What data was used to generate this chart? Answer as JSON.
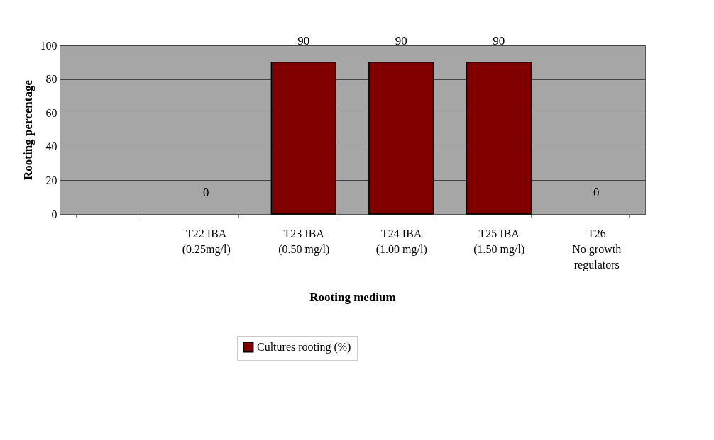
{
  "chart_data": {
    "type": "bar",
    "xlabel": "Rooting medium",
    "ylabel": "Rooting percentage",
    "categories": [
      null,
      "T22 IBA\n(0.25mg/l)",
      "T23 IBA\n(0.50 mg/l)",
      "T24  IBA\n(1.00 mg/l)",
      "T25 IBA\n(1.50 mg/l)",
      "T26\nNo growth\nregulators"
    ],
    "series": [
      {
        "name": "Cultures rooting (%)",
        "color": "#800000",
        "values": [
          null,
          0,
          90,
          90,
          90,
          0
        ]
      }
    ],
    "ylim": [
      0,
      100
    ],
    "yticks": [
      0,
      20,
      40,
      60,
      80,
      100
    ],
    "grid": "y",
    "legend": "bottom",
    "data_labels": true
  }
}
